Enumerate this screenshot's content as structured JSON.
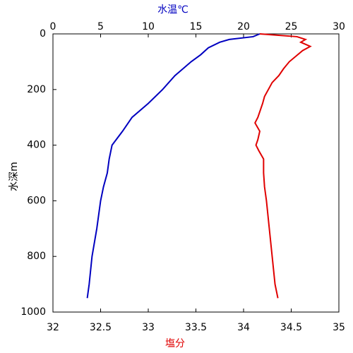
{
  "chart_data": {
    "type": "line",
    "xlabel": "塩分",
    "xlabel_color": "#e00000",
    "x2label": "水温℃",
    "x2label_color": "#0000c0",
    "ylabel": "水深m",
    "xlim": [
      32,
      35
    ],
    "xticks": [
      32,
      32.5,
      33,
      33.5,
      34,
      34.5,
      35
    ],
    "x2lim": [
      0,
      30
    ],
    "x2ticks": [
      0,
      5,
      10,
      15,
      20,
      25,
      30
    ],
    "ylim": [
      0,
      1000
    ],
    "yticks": [
      0,
      200,
      400,
      600,
      800,
      1000
    ],
    "y_reversed": true,
    "series": [
      {
        "color": "#0000c0",
        "axis": "x2",
        "x": [
          21.7,
          21,
          18.5,
          17.5,
          16.3,
          15.5,
          14.5,
          12.8,
          11.5,
          10,
          8.3,
          7.3,
          6.2,
          5.9,
          5.7,
          5.3,
          5.0,
          4.6,
          4.1,
          3.8,
          3.6
        ],
        "y": [
          0,
          10,
          20,
          30,
          50,
          75,
          100,
          150,
          200,
          250,
          300,
          350,
          400,
          450,
          500,
          550,
          600,
          700,
          800,
          900,
          950
        ]
      },
      {
        "color": "#e00000",
        "axis": "x",
        "x": [
          34.17,
          34.56,
          34.65,
          34.6,
          34.7,
          34.62,
          34.55,
          34.48,
          34.42,
          34.37,
          34.3,
          34.26,
          34.22,
          34.2,
          34.15,
          34.12,
          34.17,
          34.15,
          34.13,
          34.16,
          34.21,
          34.21,
          34.22,
          34.24,
          34.27,
          34.3,
          34.33,
          34.36
        ],
        "y": [
          0,
          10,
          20,
          30,
          45,
          60,
          80,
          100,
          125,
          150,
          175,
          200,
          225,
          250,
          300,
          320,
          350,
          380,
          400,
          420,
          450,
          500,
          550,
          600,
          700,
          800,
          900,
          950
        ]
      }
    ]
  }
}
